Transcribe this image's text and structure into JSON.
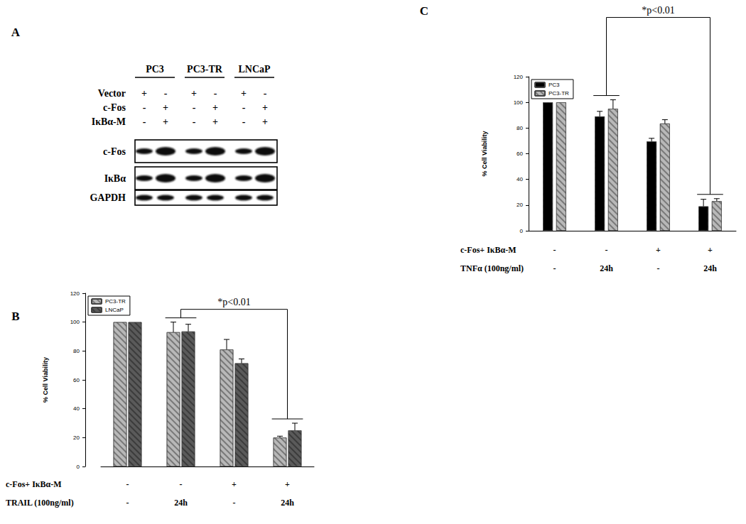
{
  "chart_data": [
    {
      "type": "bar",
      "title": "B",
      "categories": [
        null,
        null,
        null,
        null
      ],
      "y_label": "% Cell Viability",
      "series": [
        {
          "name": "PC3-TR",
          "color": "#b8b8b8",
          "values": [
            100,
            93,
            81,
            20
          ],
          "errors": [
            0,
            7,
            7,
            1
          ]
        },
        {
          "name": "LNCaP",
          "color": "#5a5a5a",
          "values": [
            100,
            93.5,
            71.5,
            25
          ],
          "errors": [
            0,
            5,
            3,
            5
          ]
        }
      ],
      "condition_rows": [
        {
          "label": "c-Fos+ IκBα-M",
          "values": [
            "-",
            "-",
            "+",
            "+"
          ]
        },
        {
          "label": "TRAIL (100ng/ml)",
          "values": [
            "-",
            "24h",
            "-",
            "24h"
          ]
        }
      ],
      "annotations": [
        {
          "text": "*p<0.01",
          "from": 1,
          "to": 3
        }
      ],
      "ylim": [
        0,
        120
      ],
      "yticks": [
        0,
        20,
        40,
        60,
        80,
        100,
        120
      ],
      "grid": false,
      "legend": "upper left"
    },
    {
      "type": "bar",
      "title": "C",
      "categories": [
        null,
        null,
        null,
        null
      ],
      "y_label": "% Cell Viability",
      "series": [
        {
          "name": "PC3",
          "color": "#000000",
          "values": [
            100,
            89,
            69.5,
            19
          ],
          "errors": [
            0,
            4,
            2.5,
            5.5
          ]
        },
        {
          "name": "PC3-TR",
          "color": "#b8b8b8",
          "values": [
            100,
            95,
            83.5,
            23
          ],
          "errors": [
            0,
            7,
            3,
            2
          ]
        }
      ],
      "condition_rows": [
        {
          "label": "c-Fos+ IκBα-M",
          "values": [
            "-",
            "-",
            "+",
            "+"
          ]
        },
        {
          "label": "TNFα (100ng/ml)",
          "values": [
            "-",
            "24h",
            "-",
            "24h"
          ]
        }
      ],
      "annotations": [
        {
          "text": "*p<0.01",
          "from": 1,
          "to": 3
        }
      ],
      "ylim": [
        0,
        120
      ],
      "yticks": [
        0,
        20,
        40,
        60,
        80,
        100,
        120
      ],
      "grid": false,
      "legend": "upper left"
    }
  ],
  "blot": {
    "title": "A",
    "cell_lines": [
      "PC3",
      "PC3-TR",
      "LNCaP"
    ],
    "treatments": [
      {
        "label": "Vector",
        "values": [
          "+",
          "-",
          "+",
          "-",
          "+",
          "-"
        ]
      },
      {
        "label": "c-Fos",
        "values": [
          "-",
          "+",
          "-",
          "+",
          "-",
          "+"
        ]
      },
      {
        "label": "IκBα-M",
        "values": [
          "-",
          "+",
          "-",
          "+",
          "-",
          "+"
        ]
      }
    ],
    "bands": [
      "c-Fos",
      "IκBα",
      "GAPDH"
    ]
  }
}
